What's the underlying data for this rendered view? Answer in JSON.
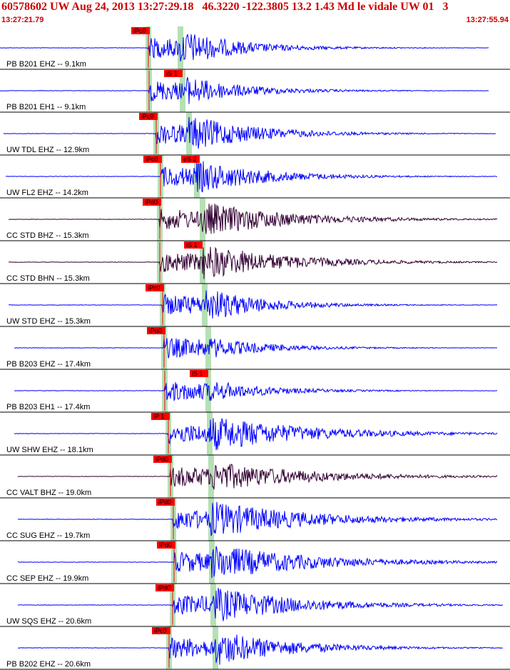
{
  "header": {
    "title": "60578602 UW Aug 24, 2013 13:27:29.18   46.3220 -122.3805 13.2 1.43 Md le vidale UW 01   3",
    "start_time": "13:27:21.79",
    "end_time": "13:27:55.94"
  },
  "colors": {
    "header_text": "#cc0000",
    "trace_blue": "#0000ff",
    "trace_dark": "#330033",
    "pick_box": "#ff0000",
    "pick_band": "#b5e0b5",
    "divider": "#000000"
  },
  "traces": [
    {
      "label": "PB B201 EHZ -- 9.1km",
      "pick": "iPc0",
      "color": "blue",
      "amp": 1.0,
      "decay": 1.0
    },
    {
      "label": "PB B201 EH1 -- 9.1km",
      "pick": "iS 1",
      "color": "blue",
      "amp": 0.8,
      "decay": 1.0
    },
    {
      "label": "UW TDL EHZ -- 12.9km",
      "pick": "iPc0",
      "color": "blue",
      "amp": 1.0,
      "decay": 0.8
    },
    {
      "label": "UW FL2 EHZ -- 14.2km",
      "pick": "iPc0",
      "pick2": "eS 2",
      "color": "blue",
      "amp": 0.9,
      "decay": 0.8
    },
    {
      "label": "CC STD BHZ -- 15.3km",
      "pick": "iPd0",
      "color": "dark",
      "amp": 1.0,
      "decay": 0.6
    },
    {
      "label": "CC STD BHN -- 15.3km",
      "pick": "iS 1",
      "color": "dark",
      "amp": 1.0,
      "decay": 0.6
    },
    {
      "label": "UW STD EHZ -- 15.3km",
      "pick": "iPc0",
      "color": "blue",
      "amp": 1.0,
      "decay": 1.0
    },
    {
      "label": "PB B203 EHZ -- 17.4km",
      "pick": "iPd0",
      "color": "blue",
      "amp": 0.5,
      "decay": 1.0
    },
    {
      "label": "PB B203 EH1 -- 17.4km",
      "pick": "iS 1",
      "color": "blue",
      "amp": 0.5,
      "decay": 1.0
    },
    {
      "label": "UW SHW EHZ -- 18.1km",
      "pick": "iP 1",
      "color": "blue",
      "amp": 1.0,
      "decay": 0.5
    },
    {
      "label": "CC VALT BHZ -- 19.0km",
      "pick": "iPd0",
      "color": "dark",
      "amp": 0.8,
      "decay": 0.5
    },
    {
      "label": "CC SUG EHZ -- 19.7km",
      "pick": "iPd0",
      "color": "blue",
      "amp": 1.0,
      "decay": 0.5
    },
    {
      "label": "CC SEP EHZ -- 19.9km",
      "pick": "iPd0",
      "color": "blue",
      "amp": 1.0,
      "decay": 0.5
    },
    {
      "label": "UW SQS EHZ -- 20.6km",
      "pick": "iPd0",
      "color": "blue",
      "amp": 1.0,
      "decay": 0.6
    },
    {
      "label": "PB B202 EHZ -- 20.6km",
      "pick": "iPc0",
      "color": "blue",
      "amp": 1.0,
      "decay": 0.7
    }
  ]
}
